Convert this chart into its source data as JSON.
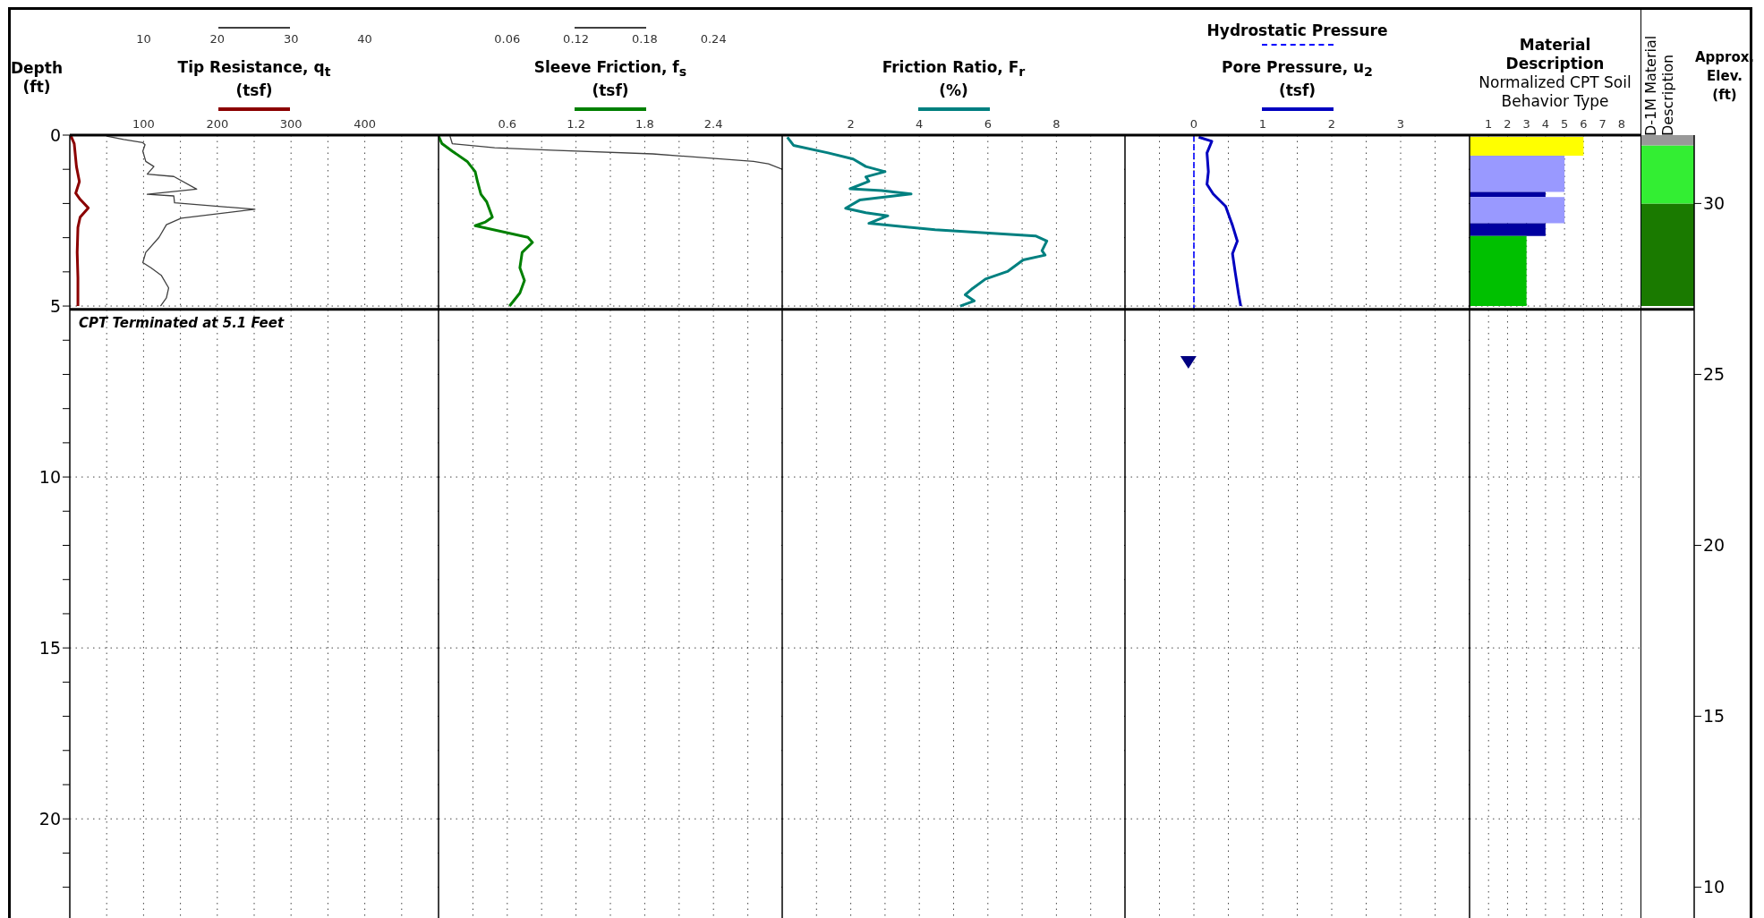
{
  "chart_data": [
    {
      "type": "line",
      "orientation": "horizontal",
      "title": "Tip Resistance, q$_{t}$\n(tsf)",
      "ylabel": "Depth\n(ft)",
      "xlim": [
        0,
        500
      ],
      "xticks": [
        {
          "value": 50,
          "label": null
        },
        100,
        {
          "value": 150,
          "label": null
        },
        200,
        {
          "value": 250,
          "label": null
        },
        300,
        {
          "value": 350,
          "label": null
        },
        400,
        {
          "value": 450,
          "label": null
        }
      ],
      "x2lim": [
        0,
        50
      ],
      "x2ticks": [
        10,
        20,
        30,
        40
      ],
      "ylim": [
        22.9,
        0
      ],
      "yticks": [
        0,
        {
          "value": 1,
          "label": null
        },
        {
          "value": 2,
          "label": null
        },
        {
          "value": 3,
          "label": null
        },
        {
          "value": 4,
          "label": null
        },
        5,
        {
          "value": 6,
          "label": null
        },
        {
          "value": 7,
          "label": null
        },
        {
          "value": 8,
          "label": null
        },
        {
          "value": 9,
          "label": null
        },
        10,
        {
          "value": 11,
          "label": null
        },
        {
          "value": 12,
          "label": null
        },
        {
          "value": 13,
          "label": null
        },
        {
          "value": 14,
          "label": null
        },
        15,
        {
          "value": 16,
          "label": null
        },
        {
          "value": 17,
          "label": null
        },
        {
          "value": 18,
          "label": null
        },
        {
          "value": 19,
          "label": null
        },
        20,
        {
          "value": 21,
          "label": null
        },
        {
          "value": 22,
          "label": null
        }
      ],
      "grid": true,
      "ref_lines": [
        {
          "axis": "y",
          "value": 5.1
        }
      ],
      "annotations": [
        "CPT Terminated at 5.1 Feet"
      ],
      "series": [
        {
          "color": "#8b0000",
          "x": [
            0,
            0.25,
            0.92,
            1.36,
            1.7,
            1.88,
            2.13,
            2.4,
            2.7,
            3.43,
            4.17,
            5.0
          ],
          "values": [
            1,
            6,
            9,
            13,
            8,
            14,
            25,
            14,
            11,
            10,
            11,
            11
          ]
        },
        {
          "axis": "x2",
          "color": "#404040",
          "x": [
            0.03,
            0.13,
            0.22,
            0.28,
            0.47,
            0.77,
            0.92,
            1.14,
            1.21,
            1.58,
            1.73,
            1.78,
            1.98,
            2.17,
            2.43,
            2.62,
            2.99,
            3.43,
            3.73,
            3.88,
            4.1,
            4.47,
            4.76,
            5.0
          ],
          "values": [
            5,
            7.3,
            9.9,
            10.2,
            9.9,
            10.3,
            11.4,
            10.5,
            14.1,
            17.2,
            10.5,
            14.1,
            14.2,
            25.1,
            15.1,
            13.1,
            12.1,
            10.3,
            9.9,
            11,
            12.4,
            13.4,
            13.1,
            12.3
          ]
        }
      ]
    },
    {
      "type": "line",
      "orientation": "horizontal",
      "title": "Sleeve Friction, f$_{s}$\n(tsf)",
      "xlim": [
        0,
        3
      ],
      "xticks": [
        {
          "value": 0.3,
          "label": null
        },
        0.6,
        {
          "value": 0.9,
          "label": null
        },
        1.2,
        {
          "value": 1.5,
          "label": null
        },
        1.8,
        {
          "value": 2.1,
          "label": null
        },
        2.4,
        {
          "value": 2.7,
          "label": null
        }
      ],
      "x2lim": [
        0,
        0.3
      ],
      "x2ticks": [
        0.06,
        0.12,
        0.18,
        0.24
      ],
      "ylim": [
        22.9,
        0
      ],
      "yticks": [
        0,
        {
          "value": 1,
          "label": null
        },
        {
          "value": 2,
          "label": null
        },
        {
          "value": 3,
          "label": null
        },
        {
          "value": 4,
          "label": null
        },
        5,
        {
          "value": 6,
          "label": null
        },
        {
          "value": 7,
          "label": null
        },
        {
          "value": 8,
          "label": null
        },
        {
          "value": 9,
          "label": null
        },
        10,
        {
          "value": 11,
          "label": null
        },
        {
          "value": 12,
          "label": null
        },
        {
          "value": 13,
          "label": null
        },
        {
          "value": 14,
          "label": null
        },
        15,
        {
          "value": 16,
          "label": null
        },
        {
          "value": 17,
          "label": null
        },
        {
          "value": 18,
          "label": null
        },
        {
          "value": 19,
          "label": null
        },
        20,
        {
          "value": 21,
          "label": null
        },
        {
          "value": 22,
          "label": null
        }
      ],
      "tick_labels": "x",
      "grid": true,
      "ref_lines": [
        {
          "axis": "y",
          "value": 5.1
        }
      ],
      "series": [
        {
          "color": "#008000",
          "x": [
            0.03,
            0.25,
            0.47,
            0.77,
            1.07,
            1.36,
            1.73,
            1.95,
            2.4,
            2.54,
            2.65,
            2.99,
            3.14,
            3.43,
            3.88,
            4.25,
            4.62,
            5.0
          ],
          "values": [
            0,
            0.03,
            0.12,
            0.25,
            0.32,
            0.34,
            0.37,
            0.42,
            0.47,
            0.41,
            0.32,
            0.78,
            0.82,
            0.73,
            0.71,
            0.75,
            0.71,
            0.62
          ]
        },
        {
          "axis": "x2",
          "color": "#404040",
          "x": [
            0.03,
            0.25,
            0.37,
            0.44,
            0.55,
            0.77,
            0.84,
            1.0
          ],
          "values": [
            0.01,
            0.012,
            0.049,
            0.099,
            0.187,
            0.275,
            0.288,
            0.3
          ]
        }
      ]
    },
    {
      "type": "line",
      "orientation": "horizontal",
      "title": "Friction Ratio, F$_{r}$\n(%)",
      "xlim": [
        0,
        10
      ],
      "xticks": [
        {
          "value": 1,
          "label": null
        },
        2,
        {
          "value": 3,
          "label": null
        },
        4,
        {
          "value": 5,
          "label": null
        },
        6,
        {
          "value": 7,
          "label": null
        },
        8,
        {
          "value": 9,
          "label": null
        }
      ],
      "ylim": [
        22.9,
        0
      ],
      "yticks": [
        0,
        {
          "value": 1,
          "label": null
        },
        {
          "value": 2,
          "label": null
        },
        {
          "value": 3,
          "label": null
        },
        {
          "value": 4,
          "label": null
        },
        5,
        {
          "value": 6,
          "label": null
        },
        {
          "value": 7,
          "label": null
        },
        {
          "value": 8,
          "label": null
        },
        {
          "value": 9,
          "label": null
        },
        10,
        {
          "value": 11,
          "label": null
        },
        {
          "value": 12,
          "label": null
        },
        {
          "value": 13,
          "label": null
        },
        {
          "value": 14,
          "label": null
        },
        15,
        {
          "value": 16,
          "label": null
        },
        {
          "value": 17,
          "label": null
        },
        {
          "value": 18,
          "label": null
        },
        {
          "value": 19,
          "label": null
        },
        20,
        {
          "value": 21,
          "label": null
        },
        {
          "value": 22,
          "label": null
        }
      ],
      "tick_labels": "x",
      "grid": true,
      "ref_lines": [
        {
          "axis": "y",
          "value": 5.1
        }
      ],
      "series": [
        {
          "color": "#008080",
          "x": [
            0.06,
            0.3,
            0.52,
            0.7,
            0.92,
            1.07,
            1.22,
            1.35,
            1.57,
            1.62,
            1.72,
            1.9,
            2.14,
            2.27,
            2.36,
            2.58,
            2.77,
            2.95,
            3.1,
            3.38,
            3.51,
            3.65,
            3.99,
            4.21,
            4.48,
            4.67,
            4.85,
            5.0
          ],
          "values": [
            0.15,
            0.33,
            1.34,
            2.07,
            2.44,
            3.0,
            2.44,
            2.53,
            1.98,
            2.9,
            3.76,
            2.26,
            1.85,
            2.44,
            3.08,
            2.53,
            4.46,
            7.39,
            7.72,
            7.58,
            7.67,
            7.03,
            6.57,
            5.93,
            5.56,
            5.34,
            5.6,
            5.19
          ]
        }
      ]
    },
    {
      "type": "line",
      "orientation": "horizontal",
      "title": "Pore Pressure, u$_{2}$\n(tsf)",
      "xlim": [
        -1,
        4
      ],
      "xticks": [
        {
          "value": -0.5,
          "label": null
        },
        0,
        {
          "value": 0.5,
          "label": null
        },
        1,
        {
          "value": 1.5,
          "label": null
        },
        2,
        {
          "value": 2.5,
          "label": null
        },
        3,
        {
          "value": 3.5,
          "label": null
        }
      ],
      "ylim": [
        22.9,
        0
      ],
      "yticks": [
        0,
        {
          "value": 1,
          "label": null
        },
        {
          "value": 2,
          "label": null
        },
        {
          "value": 3,
          "label": null
        },
        {
          "value": 4,
          "label": null
        },
        5,
        {
          "value": 6,
          "label": null
        },
        {
          "value": 7,
          "label": null
        },
        {
          "value": 8,
          "label": null
        },
        {
          "value": 9,
          "label": null
        },
        10,
        {
          "value": 11,
          "label": null
        },
        {
          "value": 12,
          "label": null
        },
        {
          "value": 13,
          "label": null
        },
        {
          "value": 14,
          "label": null
        },
        15,
        {
          "value": 16,
          "label": null
        },
        {
          "value": 17,
          "label": null
        },
        {
          "value": 18,
          "label": null
        },
        {
          "value": 19,
          "label": null
        },
        20,
        {
          "value": 21,
          "label": null
        },
        {
          "value": 22,
          "label": null
        }
      ],
      "tick_labels": "x",
      "grid": true,
      "legend": "top",
      "ref_lines": [
        {
          "axis": "y",
          "value": 5.1
        }
      ],
      "series": [
        {
          "color": "#0000c0",
          "x": [
            0.06,
            0.18,
            0.52,
            1.07,
            1.44,
            1.72,
            2.08,
            2.36,
            2.64,
            3.1,
            3.47,
            4.02,
            4.67,
            5.0
          ],
          "values": [
            0.07,
            0.26,
            0.19,
            0.21,
            0.19,
            0.28,
            0.46,
            0.51,
            0.56,
            0.63,
            0.56,
            0.6,
            0.65,
            0.68
          ]
        },
        {
          "name": "Hydrostatic Pressure",
          "color": "#0000ff",
          "line_style": "dashed",
          "x": [
            0,
            5.1
          ],
          "values": [
            0,
            0
          ]
        },
        {
          "type": "scatter",
          "marker": "triangle",
          "color": "#000080",
          "x": [
            6.7
          ],
          "values": [
            -0.08
          ]
        }
      ]
    },
    {
      "type": "area",
      "orientation": "horizontal",
      "title": "Material Description",
      "subtitle": "Normalized CPT Soil Behavior Type",
      "xlim": [
        0,
        9
      ],
      "xticks": [
        1,
        2,
        3,
        4,
        5,
        6,
        7,
        8
      ],
      "ylim": [
        22.9,
        0
      ],
      "yticks": [
        0,
        {
          "value": 1,
          "label": null
        },
        {
          "value": 2,
          "label": null
        },
        {
          "value": 3,
          "label": null
        },
        {
          "value": 4,
          "label": null
        },
        5,
        {
          "value": 6,
          "label": null
        },
        {
          "value": 7,
          "label": null
        },
        {
          "value": 8,
          "label": null
        },
        {
          "value": 9,
          "label": null
        },
        10,
        {
          "value": 11,
          "label": null
        },
        {
          "value": 12,
          "label": null
        },
        {
          "value": 13,
          "label": null
        },
        {
          "value": 14,
          "label": null
        },
        15,
        {
          "value": 16,
          "label": null
        },
        {
          "value": 17,
          "label": null
        },
        {
          "value": 18,
          "label": null
        },
        {
          "value": 19,
          "label": null
        },
        20,
        {
          "value": 21,
          "label": null
        },
        {
          "value": 22,
          "label": null
        }
      ],
      "tick_labels": "x",
      "grid": true,
      "ref_lines": [
        {
          "axis": "y",
          "value": 5.1
        }
      ],
      "series": [
        {
          "color": "#ffff00",
          "x": [
            0.05,
            0.6
          ],
          "values": [
            6,
            6
          ]
        },
        {
          "color": "#9999ff",
          "x": [
            0.6,
            1.66
          ],
          "values": [
            5,
            5
          ]
        },
        {
          "color": "#0000a0",
          "x": [
            1.66,
            1.81
          ],
          "values": [
            4,
            4
          ]
        },
        {
          "color": "#9999ff",
          "x": [
            1.81,
            2.58
          ],
          "values": [
            5,
            5
          ]
        },
        {
          "color": "#0000a0",
          "x": [
            2.58,
            2.95
          ],
          "values": [
            4,
            4
          ]
        },
        {
          "color": "#00c000",
          "x": [
            2.95,
            5.0
          ],
          "values": [
            3,
            3
          ]
        }
      ]
    },
    {
      "type": "bar",
      "categories": [
        null
      ],
      "title": "D-1M Material\nDescription",
      "ylabel": "Approx.\nElev.\n(ft)",
      "ylim": [
        9.1,
        32
      ],
      "yticks": [
        10,
        15,
        20,
        25,
        30
      ],
      "tick_labels": "y",
      "ref_lines": [
        {
          "axis": "y",
          "value": 26.9
        }
      ],
      "series": [
        {
          "color": "#1a7a00",
          "base": [
            27
          ],
          "values": [
            3
          ]
        },
        {
          "color": "#33ee33",
          "base": [
            30
          ],
          "values": [
            1.7
          ]
        },
        {
          "color": "#999999",
          "base": [
            31.7
          ],
          "values": [
            0.3
          ]
        }
      ]
    }
  ]
}
